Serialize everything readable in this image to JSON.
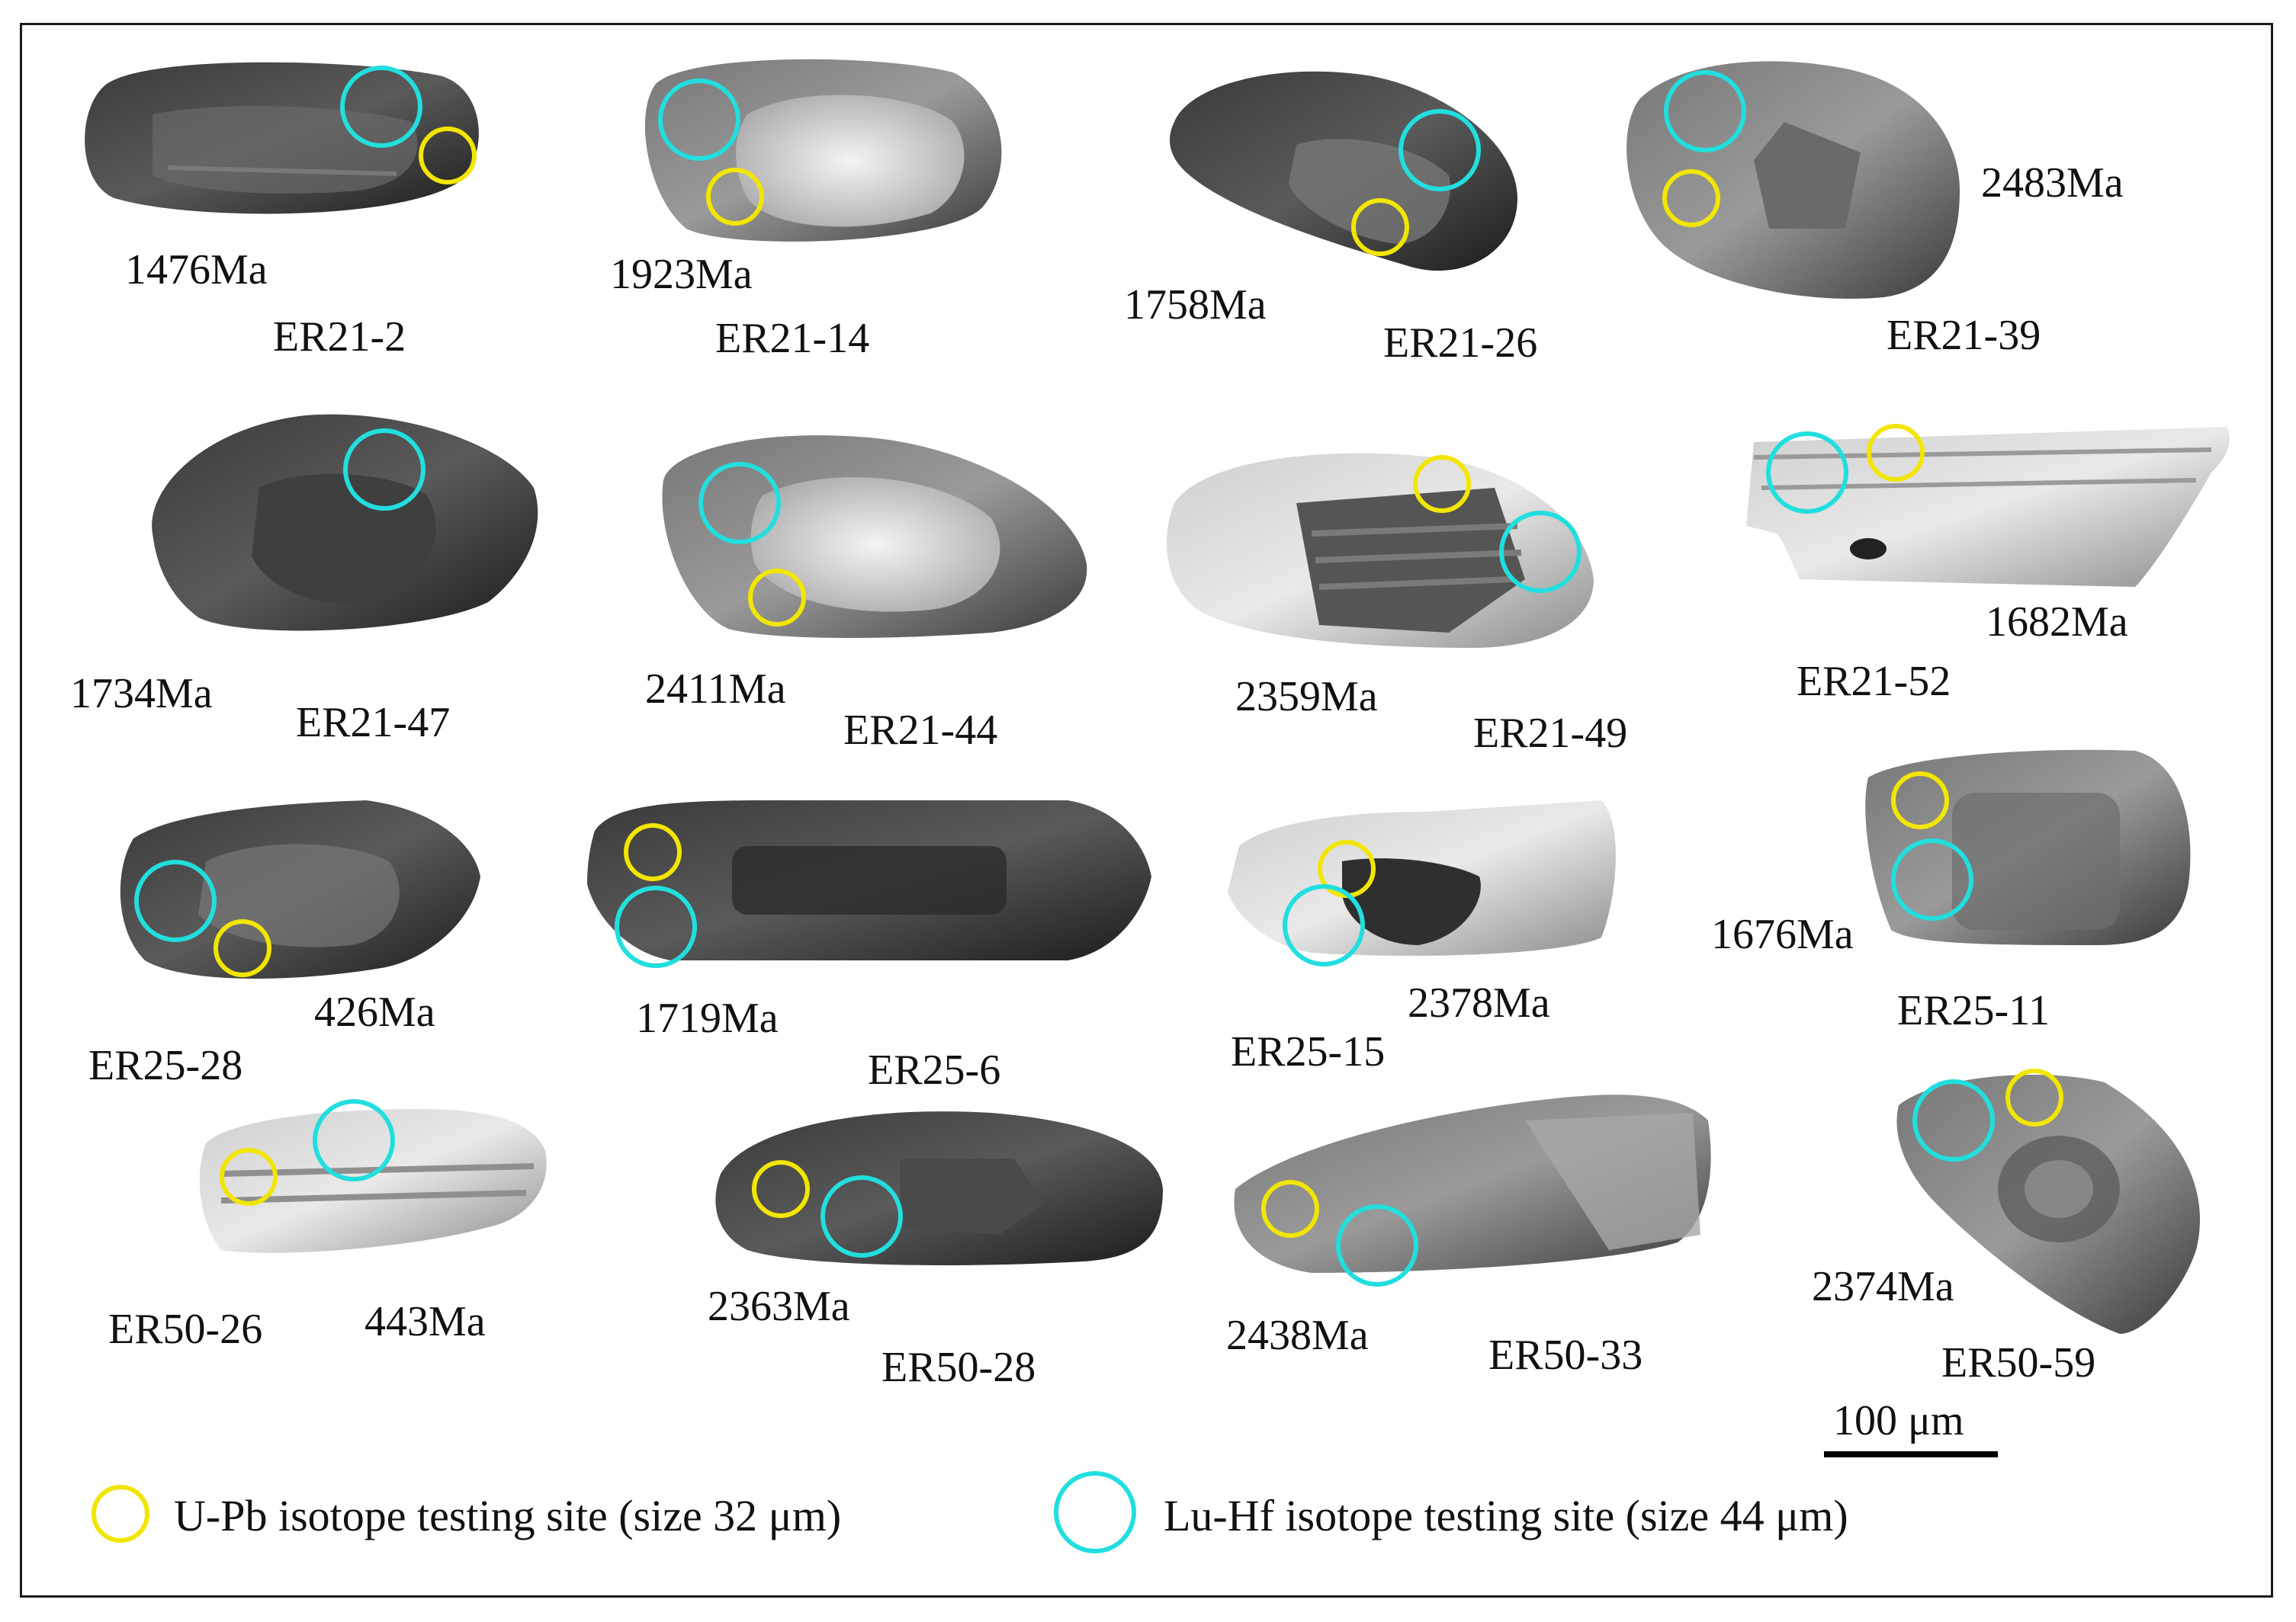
{
  "grains": [
    {
      "id": "ER21-2",
      "age": "1476Ma"
    },
    {
      "id": "ER21-14",
      "age": "1923Ma"
    },
    {
      "id": "ER21-26",
      "age": "1758Ma"
    },
    {
      "id": "ER21-39",
      "age": "2483Ma"
    },
    {
      "id": "ER21-47",
      "age": "1734Ma"
    },
    {
      "id": "ER21-44",
      "age": "2411Ma"
    },
    {
      "id": "ER21-49",
      "age": "2359Ma"
    },
    {
      "id": "ER21-52",
      "age": "1682Ma"
    },
    {
      "id": "ER25-28",
      "age": "426Ma"
    },
    {
      "id": "ER25-6",
      "age": "1719Ma"
    },
    {
      "id": "ER25-15",
      "age": "2378Ma"
    },
    {
      "id": "ER25-11",
      "age": "1676Ma"
    },
    {
      "id": "ER50-26",
      "age": "443Ma"
    },
    {
      "id": "ER50-28",
      "age": "2363Ma"
    },
    {
      "id": "ER50-33",
      "age": "2438Ma"
    },
    {
      "id": "ER50-59",
      "age": "2374Ma"
    }
  ],
  "scale_bar": {
    "label": "100 μm"
  },
  "legend": {
    "upb": {
      "label": "U-Pb isotope testing site (size 32 μm)",
      "color": "#f2e600"
    },
    "luhf": {
      "label": "Lu-Hf isotope testing site (size 44 μm)",
      "color": "#22dede"
    }
  }
}
